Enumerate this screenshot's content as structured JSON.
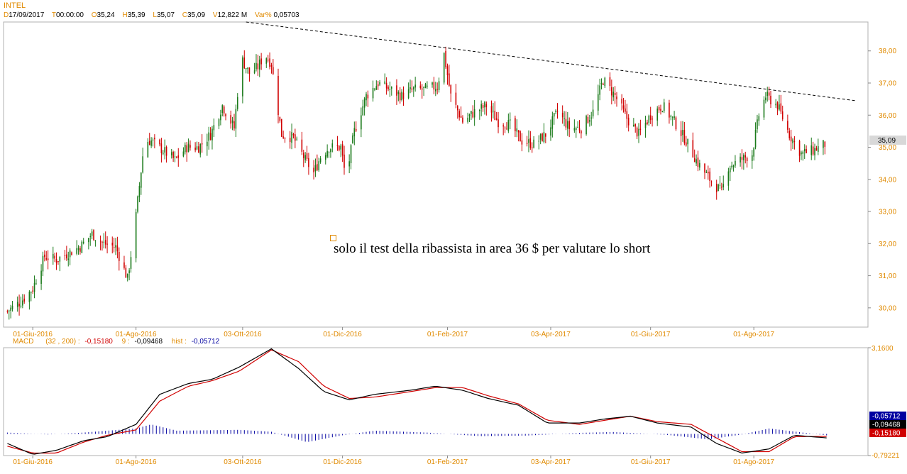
{
  "header": {
    "symbol": "INTEL",
    "date_key": "D",
    "date": "17/09/2017",
    "time_key": "T",
    "time": "00:00:00",
    "open_key": "O",
    "open": "35,24",
    "high_key": "H",
    "high": "35,39",
    "low_key": "L",
    "low": "35,07",
    "close_key": "C",
    "close": "35,09",
    "volume_key": "V",
    "volume": "12,822 M",
    "var_key": "Var%",
    "var": "0,05703"
  },
  "annotation": {
    "text": "solo il test della ribassista in area 36 $ per valutare lo short"
  },
  "macd_legend": {
    "name": "MACD",
    "params": "(32 , 200) :",
    "macd": "-0,15180",
    "signal_key": "9 :",
    "signal": "-0,09468",
    "hist_key": "hist :",
    "hist": "-0,05712"
  },
  "colors": {
    "label": "#e08a00",
    "up": "#1a7a1a",
    "down": "#d00000",
    "hist": "#0000a0",
    "signal": "#d00000",
    "macd": "#000000"
  },
  "chart_data": [
    {
      "type": "candlestick",
      "title": "INTEL",
      "x_tick_labels": [
        "01-Giu-2016",
        "01-Ago-2016",
        "03-Ott-2016",
        "01-Dic-2016",
        "01-Feb-2017",
        "03-Apr-2017",
        "01-Giu-2017",
        "01-Ago-2017"
      ],
      "y_tick_labels": [
        "30,00",
        "31,00",
        "32,00",
        "33,00",
        "34,00",
        "35,00",
        "36,00",
        "37,00",
        "38,00"
      ],
      "ylim": [
        29.4,
        38.9
      ],
      "last_price_label": "35,09",
      "close_path": [
        [
          "2016-05-17",
          29.9
        ],
        [
          "2016-05-25",
          30.2
        ],
        [
          "2016-06-01",
          30.6
        ],
        [
          "2016-06-08",
          31.6
        ],
        [
          "2016-06-15",
          31.5
        ],
        [
          "2016-06-22",
          31.7
        ],
        [
          "2016-06-29",
          31.9
        ],
        [
          "2016-07-06",
          32.3
        ],
        [
          "2016-07-13",
          32.0
        ],
        [
          "2016-07-20",
          31.9
        ],
        [
          "2016-07-27",
          30.9
        ],
        [
          "2016-07-31",
          32.4
        ],
        [
          "2016-08-03",
          33.8
        ],
        [
          "2016-08-06",
          35.2
        ],
        [
          "2016-08-10",
          35.2
        ],
        [
          "2016-08-17",
          34.9
        ],
        [
          "2016-08-24",
          34.6
        ],
        [
          "2016-08-31",
          35.0
        ],
        [
          "2016-09-07",
          35.0
        ],
        [
          "2016-09-14",
          35.4
        ],
        [
          "2016-09-21",
          36.3
        ],
        [
          "2016-09-28",
          35.6
        ],
        [
          "2016-10-02",
          37.8
        ],
        [
          "2016-10-07",
          37.3
        ],
        [
          "2016-10-12",
          37.5
        ],
        [
          "2016-10-16",
          37.9
        ],
        [
          "2016-10-20",
          37.6
        ],
        [
          "2016-10-26",
          35.4
        ],
        [
          "2016-11-02",
          35.3
        ],
        [
          "2016-11-09",
          34.6
        ],
        [
          "2016-11-14",
          34.2
        ],
        [
          "2016-11-18",
          34.7
        ],
        [
          "2016-11-23",
          35.0
        ],
        [
          "2016-11-30",
          35.0
        ],
        [
          "2016-12-03",
          34.0
        ],
        [
          "2016-12-08",
          35.5
        ],
        [
          "2016-12-15",
          36.6
        ],
        [
          "2016-12-22",
          37.0
        ],
        [
          "2016-12-29",
          36.8
        ],
        [
          "2017-01-05",
          36.6
        ],
        [
          "2017-01-12",
          36.8
        ],
        [
          "2017-01-19",
          36.8
        ],
        [
          "2017-01-26",
          36.9
        ],
        [
          "2017-01-30",
          37.9
        ],
        [
          "2017-02-03",
          36.6
        ],
        [
          "2017-02-10",
          35.8
        ],
        [
          "2017-02-17",
          36.1
        ],
        [
          "2017-02-24",
          36.3
        ],
        [
          "2017-03-03",
          35.8
        ],
        [
          "2017-03-10",
          35.7
        ],
        [
          "2017-03-17",
          35.2
        ],
        [
          "2017-03-24",
          35.1
        ],
        [
          "2017-03-31",
          35.4
        ],
        [
          "2017-04-07",
          36.1
        ],
        [
          "2017-04-14",
          35.6
        ],
        [
          "2017-04-21",
          35.6
        ],
        [
          "2017-04-28",
          36.1
        ],
        [
          "2017-05-04",
          37.1
        ],
        [
          "2017-05-11",
          36.6
        ],
        [
          "2017-05-18",
          35.9
        ],
        [
          "2017-05-25",
          35.4
        ],
        [
          "2017-06-01",
          36.0
        ],
        [
          "2017-06-08",
          36.3
        ],
        [
          "2017-06-15",
          35.8
        ],
        [
          "2017-06-22",
          35.2
        ],
        [
          "2017-06-29",
          34.5
        ],
        [
          "2017-07-06",
          34.0
        ],
        [
          "2017-07-13",
          33.6
        ],
        [
          "2017-07-17",
          34.4
        ],
        [
          "2017-07-24",
          34.6
        ],
        [
          "2017-07-31",
          34.8
        ],
        [
          "2017-08-04",
          36.0
        ],
        [
          "2017-08-08",
          36.6
        ],
        [
          "2017-08-15",
          36.3
        ],
        [
          "2017-08-22",
          35.4
        ],
        [
          "2017-08-29",
          34.8
        ],
        [
          "2017-09-05",
          34.9
        ],
        [
          "2017-09-12",
          35.1
        ]
      ],
      "trendline": {
        "style": "dashed",
        "start": [
          "2016-10-05",
          38.9
        ],
        "end": [
          "2017-09-30",
          36.45
        ]
      }
    },
    {
      "type": "macd",
      "title": "MACD",
      "y_tick_labels": [
        "3,1600",
        "-0,79221"
      ],
      "ylim": [
        -0.79221,
        3.16
      ],
      "macd_path": [
        [
          "2016-05-17",
          -0.35
        ],
        [
          "2016-06-01",
          -0.75
        ],
        [
          "2016-06-15",
          -0.6
        ],
        [
          "2016-07-01",
          -0.25
        ],
        [
          "2016-07-15",
          -0.1
        ],
        [
          "2016-08-01",
          0.35
        ],
        [
          "2016-08-15",
          1.45
        ],
        [
          "2016-09-01",
          1.85
        ],
        [
          "2016-09-15",
          2.0
        ],
        [
          "2016-10-01",
          2.45
        ],
        [
          "2016-10-20",
          3.12
        ],
        [
          "2016-11-05",
          2.4
        ],
        [
          "2016-11-20",
          1.55
        ],
        [
          "2016-12-05",
          1.25
        ],
        [
          "2016-12-20",
          1.45
        ],
        [
          "2017-01-10",
          1.6
        ],
        [
          "2017-01-25",
          1.75
        ],
        [
          "2017-02-10",
          1.6
        ],
        [
          "2017-02-25",
          1.3
        ],
        [
          "2017-03-15",
          1.05
        ],
        [
          "2017-04-01",
          0.4
        ],
        [
          "2017-04-20",
          0.4
        ],
        [
          "2017-05-05",
          0.55
        ],
        [
          "2017-05-20",
          0.65
        ],
        [
          "2017-06-05",
          0.4
        ],
        [
          "2017-06-25",
          0.25
        ],
        [
          "2017-07-10",
          -0.35
        ],
        [
          "2017-07-25",
          -0.7
        ],
        [
          "2017-08-10",
          -0.55
        ],
        [
          "2017-08-25",
          -0.05
        ],
        [
          "2017-09-14",
          -0.15
        ]
      ],
      "signal_path": [
        [
          "2016-05-17",
          -0.45
        ],
        [
          "2016-06-01",
          -0.7
        ],
        [
          "2016-06-15",
          -0.7
        ],
        [
          "2016-07-01",
          -0.3
        ],
        [
          "2016-07-15",
          -0.05
        ],
        [
          "2016-08-01",
          0.15
        ],
        [
          "2016-08-15",
          1.2
        ],
        [
          "2016-09-01",
          1.75
        ],
        [
          "2016-09-15",
          1.95
        ],
        [
          "2016-10-01",
          2.3
        ],
        [
          "2016-10-20",
          3.08
        ],
        [
          "2016-11-05",
          2.65
        ],
        [
          "2016-11-20",
          1.75
        ],
        [
          "2016-12-05",
          1.3
        ],
        [
          "2016-12-20",
          1.35
        ],
        [
          "2017-01-10",
          1.55
        ],
        [
          "2017-01-25",
          1.7
        ],
        [
          "2017-02-10",
          1.7
        ],
        [
          "2017-02-25",
          1.4
        ],
        [
          "2017-03-15",
          1.1
        ],
        [
          "2017-04-01",
          0.5
        ],
        [
          "2017-04-20",
          0.35
        ],
        [
          "2017-05-05",
          0.5
        ],
        [
          "2017-05-20",
          0.65
        ],
        [
          "2017-06-05",
          0.45
        ],
        [
          "2017-06-25",
          0.35
        ],
        [
          "2017-07-10",
          -0.15
        ],
        [
          "2017-07-25",
          -0.65
        ],
        [
          "2017-08-10",
          -0.65
        ],
        [
          "2017-08-25",
          -0.1
        ],
        [
          "2017-09-14",
          -0.09
        ]
      ],
      "histogram_path": [
        [
          "2016-05-17",
          0.05
        ],
        [
          "2016-06-10",
          -0.02
        ],
        [
          "2016-07-01",
          0.05
        ],
        [
          "2016-08-01",
          0.2
        ],
        [
          "2016-08-10",
          0.35
        ],
        [
          "2016-08-25",
          0.12
        ],
        [
          "2016-10-01",
          0.15
        ],
        [
          "2016-10-20",
          0.08
        ],
        [
          "2016-11-10",
          -0.3
        ],
        [
          "2016-12-01",
          -0.05
        ],
        [
          "2016-12-20",
          0.12
        ],
        [
          "2017-01-20",
          0.05
        ],
        [
          "2017-02-20",
          -0.08
        ],
        [
          "2017-03-20",
          -0.06
        ],
        [
          "2017-04-20",
          0.04
        ],
        [
          "2017-05-10",
          0.07
        ],
        [
          "2017-06-10",
          -0.03
        ],
        [
          "2017-07-05",
          -0.2
        ],
        [
          "2017-07-25",
          -0.02
        ],
        [
          "2017-08-10",
          0.2
        ],
        [
          "2017-09-14",
          -0.06
        ]
      ],
      "value_badges": [
        "-0,05712",
        "-0,09468",
        "-0,15180"
      ]
    }
  ]
}
